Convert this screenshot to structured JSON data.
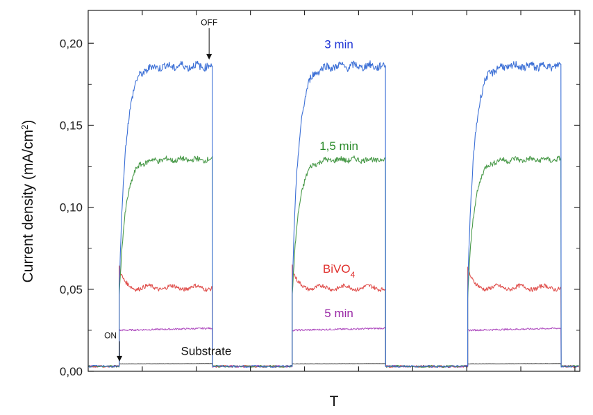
{
  "chart_data": {
    "type": "line",
    "title": "",
    "xlabel": "T",
    "ylabel": "Current density (mA/cm",
    "ylabel_sup": "2",
    "ylabel_close": ")",
    "xlim": [
      0,
      100
    ],
    "ylim": [
      0,
      0.22
    ],
    "yticks": [
      0.0,
      0.05,
      0.1,
      0.15,
      0.2
    ],
    "ytick_labels": [
      "0,00",
      "0,05",
      "0,10",
      "0,15",
      "0,20"
    ],
    "x_minor_ticks": [
      11,
      22,
      33,
      44,
      55,
      66,
      77,
      88,
      99
    ],
    "on_intervals": [
      [
        6.3,
        25.3
      ],
      [
        41.5,
        60.5
      ],
      [
        77.2,
        96.2
      ]
    ],
    "baseline": 0.003,
    "series": [
      {
        "name": "3 min",
        "color": "#3b6fd6",
        "plateau": 0.186,
        "rise": 0.05,
        "shape": "rise",
        "label": "3 min",
        "label_color": "#1f35d6"
      },
      {
        "name": "1,5 min",
        "color": "#4a9a4a",
        "plateau": 0.129,
        "rise": 0.045,
        "shape": "rise",
        "label": "1,5 min",
        "label_color": "#2a8a2a"
      },
      {
        "name": "BiVO4",
        "color": "#e0504d",
        "plateau": 0.051,
        "spike": 0.064,
        "shape": "spike",
        "label": "BiVO",
        "label_sub": "4",
        "label_color": "#e0302d"
      },
      {
        "name": "5 min",
        "color": "#b04fc0",
        "plateau": 0.025,
        "shape": "flat",
        "label": "5 min",
        "label_color": "#9a2aa6"
      },
      {
        "name": "Substrate",
        "color": "#444444",
        "plateau": 0.0045,
        "shape": "flat",
        "label": "Substrate",
        "label_color": "#111111"
      }
    ],
    "annotations": [
      {
        "text": "ON",
        "x": 5.8,
        "y": 0.02,
        "arrow_to": [
          5.8,
          0.006
        ]
      },
      {
        "text": "OFF",
        "x": 24.6,
        "y": 0.211,
        "arrow_to": [
          24.6,
          0.19
        ]
      }
    ]
  }
}
